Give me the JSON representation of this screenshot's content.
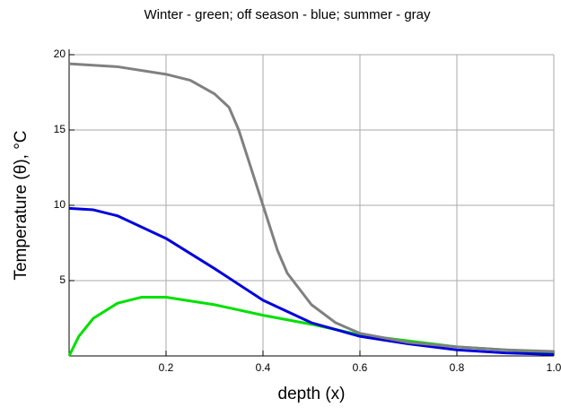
{
  "chart_data": {
    "type": "line",
    "title": "Winter - green; off season - blue; summer - gray",
    "x_label": "depth (x)",
    "y_label": "Temperature (θ), °C",
    "xlim": [
      0,
      1
    ],
    "ylim": [
      0,
      20
    ],
    "xticks": [
      0.2,
      0.4,
      0.6,
      0.8,
      {
        "value": 1,
        "label": "1.0"
      }
    ],
    "yticks": [
      5,
      10,
      15,
      20
    ],
    "grid": true,
    "series": [
      {
        "color": "#00e000",
        "x": [
          0,
          0.02,
          0.05,
          0.1,
          0.15,
          0.2,
          0.3,
          0.4,
          0.5,
          0.6,
          0.7,
          0.8,
          0.9,
          1
        ],
        "values": [
          0,
          1.3,
          2.5,
          3.5,
          3.9,
          3.9,
          3.4,
          2.7,
          2.1,
          1.4,
          1.0,
          0.6,
          0.4,
          0.2
        ]
      },
      {
        "color": "#0000dd",
        "x": [
          0,
          0.05,
          0.1,
          0.2,
          0.3,
          0.4,
          0.5,
          0.6,
          0.7,
          0.8,
          0.9,
          1
        ],
        "values": [
          9.8,
          9.7,
          9.3,
          7.8,
          5.8,
          3.7,
          2.2,
          1.3,
          0.8,
          0.4,
          0.2,
          0.1
        ]
      },
      {
        "color": "#808080",
        "x": [
          0,
          0.1,
          0.2,
          0.25,
          0.3,
          0.33,
          0.35,
          0.37,
          0.4,
          0.43,
          0.45,
          0.5,
          0.55,
          0.6,
          0.7,
          0.8,
          0.9,
          1
        ],
        "values": [
          19.4,
          19.2,
          18.7,
          18.3,
          17.4,
          16.5,
          15,
          13,
          10,
          7,
          5.5,
          3.4,
          2.2,
          1.5,
          0.9,
          0.6,
          0.4,
          0.3
        ]
      }
    ]
  }
}
